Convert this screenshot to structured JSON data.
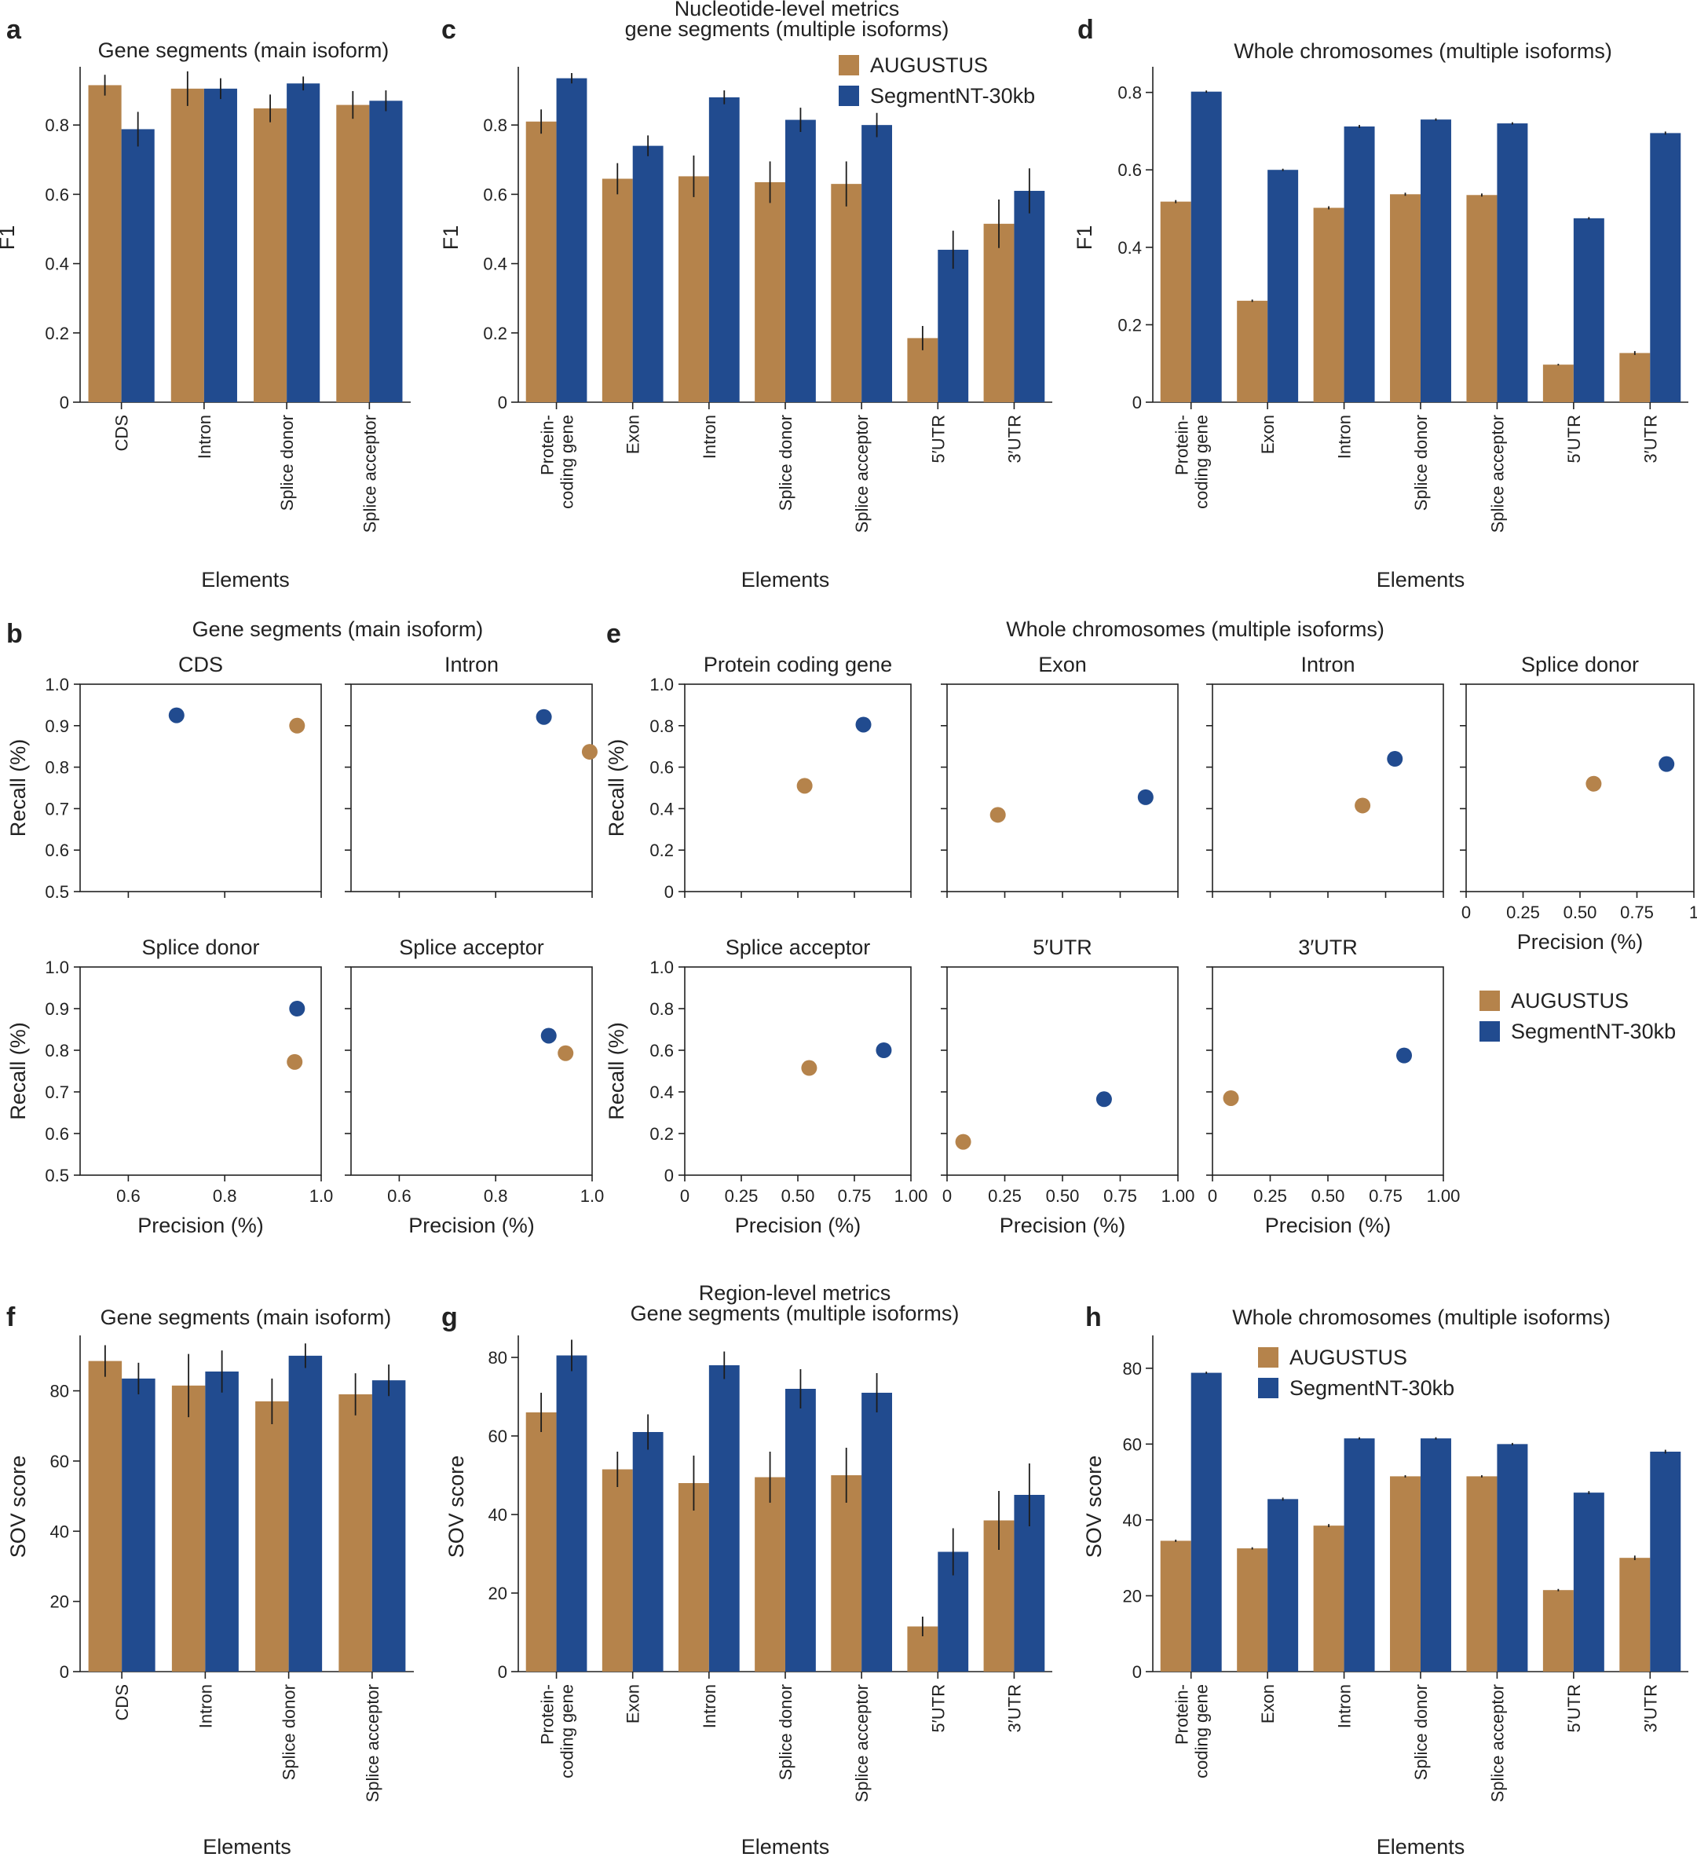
{
  "colors": {
    "augustus": "#B5834B",
    "segmentnt": "#214B8F"
  },
  "legend": {
    "augustus": "AUGUSTUS",
    "segmentnt": "SegmentNT-30kb"
  },
  "labels": {
    "elements": "Elements",
    "f1": "F1",
    "recall": "Recall (%)",
    "precision": "Precision (%)",
    "sov": "SOV score"
  },
  "chart_data": [
    {
      "panel": "a",
      "type": "bar",
      "title": "Gene segments (main isoform)",
      "xlabel": "Elements",
      "ylabel": "F1",
      "ylim": [
        0,
        0.95
      ],
      "yticks": [
        "0",
        "0.2",
        "0.4",
        "0.6",
        "0.8"
      ],
      "categories": [
        "CDS",
        "Intron",
        "Splice donor",
        "Splice acceptor"
      ],
      "series": [
        {
          "name": "AUGUSTUS",
          "values": [
            0.915,
            0.905,
            0.848,
            0.858
          ],
          "errors": [
            0.03,
            0.05,
            0.04,
            0.04
          ]
        },
        {
          "name": "SegmentNT-30kb",
          "values": [
            0.788,
            0.905,
            0.92,
            0.87
          ],
          "errors": [
            0.05,
            0.03,
            0.02,
            0.03
          ]
        }
      ]
    },
    {
      "panel": "c",
      "type": "bar",
      "title": "Nucleotide-level metrics",
      "subtitle": "gene segments (multiple isoforms)",
      "xlabel": "Elements",
      "ylabel": "F1",
      "ylim": [
        0,
        0.95
      ],
      "yticks": [
        "0",
        "0.2",
        "0.4",
        "0.6",
        "0.8"
      ],
      "categories": [
        "Protein-\ncoding gene",
        "Exon",
        "Intron",
        "Splice donor",
        "Splice acceptor",
        "5′UTR",
        "3′UTR"
      ],
      "series": [
        {
          "name": "AUGUSTUS",
          "values": [
            0.81,
            0.645,
            0.652,
            0.635,
            0.63,
            0.185,
            0.515
          ],
          "errors": [
            0.035,
            0.045,
            0.06,
            0.06,
            0.065,
            0.035,
            0.07
          ]
        },
        {
          "name": "SegmentNT-30kb",
          "values": [
            0.935,
            0.74,
            0.88,
            0.815,
            0.8,
            0.44,
            0.61
          ],
          "errors": [
            0.015,
            0.03,
            0.02,
            0.035,
            0.035,
            0.055,
            0.065
          ]
        }
      ]
    },
    {
      "panel": "d",
      "type": "bar",
      "title": "Whole chromosomes (multiple isoforms)",
      "xlabel": "Elements",
      "ylabel": "F1",
      "ylim": [
        0,
        0.85
      ],
      "yticks": [
        "0",
        "0.2",
        "0.4",
        "0.6",
        "0.8"
      ],
      "categories": [
        "Protein-\ncoding gene",
        "Exon",
        "Intron",
        "Splice donor",
        "Splice acceptor",
        "5′UTR",
        "3′UTR"
      ],
      "series": [
        {
          "name": "AUGUSTUS",
          "values": [
            0.518,
            0.262,
            0.502,
            0.537,
            0.535,
            0.097,
            0.127
          ],
          "errors": [
            0.004,
            0.003,
            0.004,
            0.004,
            0.004,
            0.002,
            0.005
          ]
        },
        {
          "name": "SegmentNT-30kb",
          "values": [
            0.802,
            0.6,
            0.712,
            0.73,
            0.72,
            0.475,
            0.695
          ],
          "errors": [
            0.003,
            0.003,
            0.004,
            0.003,
            0.003,
            0.003,
            0.004
          ]
        }
      ]
    },
    {
      "panel": "f",
      "type": "bar",
      "title": "Gene segments (main isoform)",
      "xlabel": "Elements",
      "ylabel": "SOV score",
      "ylim": [
        0,
        94
      ],
      "yticks": [
        "0",
        "20",
        "40",
        "60",
        "80"
      ],
      "categories": [
        "CDS",
        "Intron",
        "Splice donor",
        "Splice acceptor"
      ],
      "series": [
        {
          "name": "AUGUSTUS",
          "values": [
            88.5,
            81.5,
            77,
            79
          ],
          "errors": [
            4.5,
            9,
            6.5,
            6
          ]
        },
        {
          "name": "SegmentNT-30kb",
          "values": [
            83.5,
            85.5,
            90,
            83
          ],
          "errors": [
            4.5,
            6,
            3.5,
            4.5
          ]
        }
      ]
    },
    {
      "panel": "g",
      "type": "bar",
      "title": "Region-level metrics",
      "subtitle": "Gene segments (multiple isoforms)",
      "xlabel": "Elements",
      "ylabel": "SOV score",
      "ylim": [
        0,
        84
      ],
      "yticks": [
        "0",
        "20",
        "40",
        "60",
        "80"
      ],
      "categories": [
        "Protein-\ncoding gene",
        "Exon",
        "Intron",
        "Splice donor",
        "Splice acceptor",
        "5′UTR",
        "3′UTR"
      ],
      "series": [
        {
          "name": "AUGUSTUS",
          "values": [
            66,
            51.5,
            48,
            49.5,
            50,
            11.5,
            38.5
          ],
          "errors": [
            5,
            4.5,
            7,
            6.5,
            7,
            2.5,
            7.5
          ]
        },
        {
          "name": "SegmentNT-30kb",
          "values": [
            80.5,
            61,
            78,
            72,
            71,
            30.5,
            45
          ],
          "errors": [
            4,
            4.5,
            3.5,
            5,
            5,
            6,
            8
          ]
        }
      ]
    },
    {
      "panel": "h",
      "type": "bar",
      "title": "Whole chromosomes (multiple isoforms)",
      "xlabel": "Elements",
      "ylabel": "SOV score",
      "ylim": [
        0,
        87
      ],
      "yticks": [
        "0",
        "20",
        "40",
        "60",
        "80"
      ],
      "categories": [
        "Protein-\ncoding gene",
        "Exon",
        "Intron",
        "Splice donor",
        "Splice acceptor",
        "5′UTR",
        "3′UTR"
      ],
      "series": [
        {
          "name": "AUGUSTUS",
          "values": [
            34.5,
            32.5,
            38.5,
            51.5,
            51.5,
            21.5,
            30
          ],
          "errors": [
            0.3,
            0.3,
            0.4,
            0.3,
            0.3,
            0.3,
            0.6
          ]
        },
        {
          "name": "SegmentNT-30kb",
          "values": [
            78.8,
            45.5,
            61.5,
            61.5,
            60,
            47.2,
            58
          ],
          "errors": [
            0.3,
            0.4,
            0.3,
            0.3,
            0.3,
            0.4,
            0.5
          ]
        }
      ]
    },
    {
      "panel": "b",
      "type": "scatter",
      "title": "Gene segments (main isoform)",
      "xlabel": "Precision (%)",
      "ylabel": "Recall (%)",
      "xlim": [
        0.5,
        1.0
      ],
      "ylim": [
        0.5,
        1.0
      ],
      "xticks": [
        "0.6",
        "0.8",
        "1.0"
      ],
      "yticks": [
        "0.5",
        "0.6",
        "0.7",
        "0.8",
        "0.9",
        "1.0"
      ],
      "subplots": [
        {
          "title": "CDS",
          "points": [
            {
              "name": "AUGUSTUS",
              "x": 0.95,
              "y": 0.9
            },
            {
              "name": "SegmentNT-30kb",
              "x": 0.7,
              "y": 0.925
            }
          ]
        },
        {
          "title": "Intron",
          "points": [
            {
              "name": "AUGUSTUS",
              "x": 0.995,
              "y": 0.837
            },
            {
              "name": "SegmentNT-30kb",
              "x": 0.9,
              "y": 0.921
            }
          ]
        },
        {
          "title": "Splice donor",
          "points": [
            {
              "name": "AUGUSTUS",
              "x": 0.945,
              "y": 0.772
            },
            {
              "name": "SegmentNT-30kb",
              "x": 0.95,
              "y": 0.9
            }
          ]
        },
        {
          "title": "Splice acceptor",
          "points": [
            {
              "name": "AUGUSTUS",
              "x": 0.945,
              "y": 0.793
            },
            {
              "name": "SegmentNT-30kb",
              "x": 0.91,
              "y": 0.835
            }
          ]
        }
      ]
    },
    {
      "panel": "e",
      "type": "scatter",
      "title": "Whole chromosomes (multiple isoforms)",
      "xlabel": "Precision (%)",
      "ylabel": "Recall (%)",
      "xlim": [
        0,
        1
      ],
      "ylim": [
        0,
        1
      ],
      "xticks": [
        "0",
        "0.25",
        "0.50",
        "0.75",
        "1.00"
      ],
      "xticks_short_last": [
        "0",
        "0.25",
        "0.50",
        "0.75",
        "1"
      ],
      "yticks": [
        "0",
        "0.2",
        "0.4",
        "0.6",
        "0.8",
        "1.0"
      ],
      "subplots": [
        {
          "title": "Protein coding gene",
          "points": [
            {
              "name": "AUGUSTUS",
              "x": 0.53,
              "y": 0.51
            },
            {
              "name": "SegmentNT-30kb",
              "x": 0.79,
              "y": 0.805
            }
          ]
        },
        {
          "title": "Exon",
          "points": [
            {
              "name": "AUGUSTUS",
              "x": 0.22,
              "y": 0.37
            },
            {
              "name": "SegmentNT-30kb",
              "x": 0.86,
              "y": 0.455
            }
          ]
        },
        {
          "title": "Intron",
          "points": [
            {
              "name": "AUGUSTUS",
              "x": 0.65,
              "y": 0.415
            },
            {
              "name": "SegmentNT-30kb",
              "x": 0.79,
              "y": 0.64
            }
          ]
        },
        {
          "title": "Splice donor",
          "points": [
            {
              "name": "AUGUSTUS",
              "x": 0.56,
              "y": 0.52
            },
            {
              "name": "SegmentNT-30kb",
              "x": 0.88,
              "y": 0.615
            }
          ]
        },
        {
          "title": "Splice acceptor",
          "points": [
            {
              "name": "AUGUSTUS",
              "x": 0.55,
              "y": 0.515
            },
            {
              "name": "SegmentNT-30kb",
              "x": 0.88,
              "y": 0.6
            }
          ]
        },
        {
          "title": "5′UTR",
          "points": [
            {
              "name": "AUGUSTUS",
              "x": 0.07,
              "y": 0.16
            },
            {
              "name": "SegmentNT-30kb",
              "x": 0.68,
              "y": 0.365
            }
          ]
        },
        {
          "title": "3′UTR",
          "points": [
            {
              "name": "AUGUSTUS",
              "x": 0.08,
              "y": 0.37
            },
            {
              "name": "SegmentNT-30kb",
              "x": 0.83,
              "y": 0.575
            }
          ]
        }
      ]
    }
  ]
}
